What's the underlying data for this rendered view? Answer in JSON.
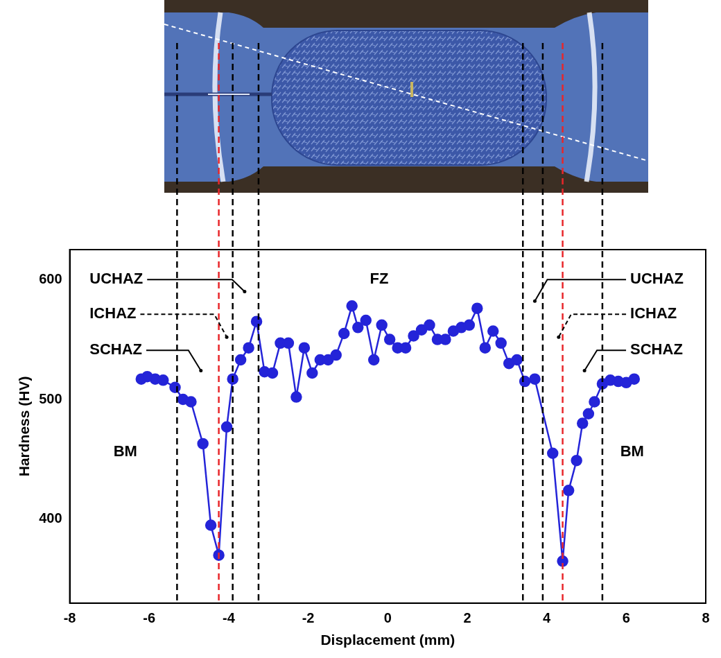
{
  "chart_data": {
    "type": "line",
    "x_label": "Displacement (mm)",
    "y_label": "Hardness (HV)",
    "color": "#2424d8",
    "marker": "circle",
    "grid": false,
    "x": [
      -6.2,
      -6.05,
      -5.85,
      -5.65,
      -5.35,
      -5.15,
      -4.95,
      -4.65,
      -4.45,
      -4.25,
      -4.05,
      -3.9,
      -3.7,
      -3.5,
      -3.3,
      -3.1,
      -2.9,
      -2.7,
      -2.5,
      -2.3,
      -2.1,
      -1.9,
      -1.7,
      -1.5,
      -1.3,
      -1.1,
      -0.9,
      -0.75,
      -0.55,
      -0.35,
      -0.15,
      0.05,
      0.25,
      0.45,
      0.65,
      0.85,
      1.05,
      1.25,
      1.45,
      1.65,
      1.85,
      2.05,
      2.25,
      2.45,
      2.65,
      2.85,
      3.05,
      3.25,
      3.45,
      3.7,
      4.15,
      4.4,
      4.55,
      4.75,
      4.9,
      5.05,
      5.2,
      5.4,
      5.6,
      5.8,
      6.0,
      6.2
    ],
    "values": [
      517,
      519,
      517,
      516,
      510,
      500,
      498,
      463,
      395,
      370,
      477,
      517,
      533,
      543,
      565,
      523,
      522,
      547,
      547,
      502,
      543,
      522,
      533,
      533,
      537,
      555,
      578,
      560,
      566,
      533,
      562,
      550,
      543,
      543,
      553,
      558,
      562,
      550,
      550,
      557,
      560,
      562,
      576,
      543,
      557,
      547,
      530,
      533,
      515,
      517,
      455,
      365,
      424,
      449,
      480,
      488,
      498,
      513,
      516,
      515,
      514,
      517
    ],
    "xlim": [
      -8,
      8
    ],
    "xticks": [
      -8,
      -6,
      -4,
      -2,
      0,
      2,
      4,
      6,
      8
    ],
    "ylim": [
      330,
      625
    ],
    "yticks": [
      400,
      500,
      600
    ],
    "vlines": [
      {
        "x": -5.3,
        "color": "#000000"
      },
      {
        "x": -4.25,
        "color": "#e8262a"
      },
      {
        "x": -3.9,
        "color": "#000000"
      },
      {
        "x": -3.25,
        "color": "#000000"
      },
      {
        "x": 3.4,
        "color": "#000000"
      },
      {
        "x": 3.9,
        "color": "#000000"
      },
      {
        "x": 4.4,
        "color": "#e8262a"
      },
      {
        "x": 5.4,
        "color": "#000000"
      }
    ],
    "annotations": [
      {
        "text": "UCHAZ",
        "x": -7.5,
        "y": 600,
        "target": [
          -3.6,
          590
        ]
      },
      {
        "text": "ICHAZ",
        "x": -7.5,
        "y": 571,
        "target": [
          -4.05,
          552
        ],
        "line_style": "dashed"
      },
      {
        "text": "SCHAZ",
        "x": -7.5,
        "y": 541,
        "target": [
          -4.7,
          524
        ]
      },
      {
        "text": "UCHAZ",
        "x": 6.1,
        "y": 600,
        "target": [
          3.7,
          582
        ]
      },
      {
        "text": "ICHAZ",
        "x": 6.1,
        "y": 571,
        "target": [
          4.3,
          552
        ],
        "line_style": "dashed"
      },
      {
        "text": "SCHAZ",
        "x": 6.1,
        "y": 541,
        "target": [
          4.95,
          524
        ]
      },
      {
        "text": "FZ",
        "x": -0.45,
        "y": 600
      },
      {
        "text": "BM",
        "x": -6.9,
        "y": 456
      },
      {
        "text": "BM",
        "x": 5.85,
        "y": 456
      }
    ]
  }
}
